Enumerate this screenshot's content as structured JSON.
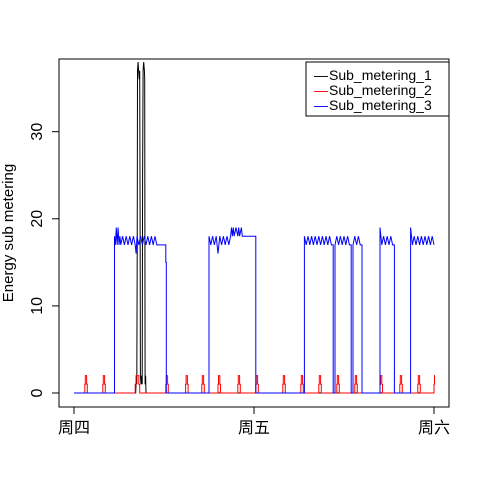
{
  "chart_data": {
    "type": "line",
    "title": "",
    "xlabel": "",
    "ylabel": "Energy sub metering",
    "x_domain": [
      0,
      2
    ],
    "x_ticks": [
      {
        "value": 0,
        "label": "周四"
      },
      {
        "value": 1,
        "label": "周五"
      },
      {
        "value": 2,
        "label": "周六"
      }
    ],
    "y_domain": [
      -1.5,
      39
    ],
    "y_ticks": [
      0,
      10,
      20,
      30
    ],
    "legend": {
      "position": "top-right",
      "line_symbol": "—"
    },
    "series": [
      {
        "name": "Sub_metering_1",
        "color": "#000000",
        "points": [
          [
            0,
            0
          ],
          [
            0.343,
            0
          ],
          [
            0.346,
            2
          ],
          [
            0.349,
            1
          ],
          [
            0.351,
            16
          ],
          [
            0.353,
            37
          ],
          [
            0.356,
            38
          ],
          [
            0.359,
            37
          ],
          [
            0.362,
            36
          ],
          [
            0.365,
            37
          ],
          [
            0.367,
            20
          ],
          [
            0.369,
            2
          ],
          [
            0.372,
            1
          ],
          [
            0.376,
            2
          ],
          [
            0.379,
            1
          ],
          [
            0.381,
            25
          ],
          [
            0.384,
            37
          ],
          [
            0.387,
            38
          ],
          [
            0.391,
            37
          ],
          [
            0.393,
            36
          ],
          [
            0.395,
            1
          ],
          [
            0.398,
            2
          ],
          [
            0.4,
            0
          ],
          [
            0.41,
            0
          ],
          [
            2,
            0
          ]
        ]
      },
      {
        "name": "Sub_metering_2",
        "color": "#ff0000",
        "points": [
          [
            0,
            0
          ],
          [
            0.06,
            0
          ],
          [
            0.06,
            1
          ],
          [
            0.063,
            1
          ],
          [
            0.063,
            2
          ],
          [
            0.07,
            2
          ],
          [
            0.07,
            1
          ],
          [
            0.074,
            1
          ],
          [
            0.074,
            0
          ],
          [
            0.16,
            0
          ],
          [
            0.16,
            1
          ],
          [
            0.163,
            1
          ],
          [
            0.163,
            2
          ],
          [
            0.17,
            2
          ],
          [
            0.17,
            1
          ],
          [
            0.174,
            1
          ],
          [
            0.174,
            0
          ],
          [
            0.34,
            0
          ],
          [
            0.34,
            1
          ],
          [
            0.345,
            1
          ],
          [
            0.345,
            2
          ],
          [
            0.36,
            2
          ],
          [
            0.36,
            1
          ],
          [
            0.365,
            1
          ],
          [
            0.365,
            0
          ],
          [
            0.51,
            0
          ],
          [
            0.51,
            1
          ],
          [
            0.513,
            1
          ],
          [
            0.513,
            2
          ],
          [
            0.52,
            2
          ],
          [
            0.52,
            1
          ],
          [
            0.524,
            1
          ],
          [
            0.524,
            0
          ],
          [
            0.62,
            0
          ],
          [
            0.62,
            1
          ],
          [
            0.623,
            1
          ],
          [
            0.623,
            2
          ],
          [
            0.63,
            2
          ],
          [
            0.63,
            1
          ],
          [
            0.634,
            1
          ],
          [
            0.634,
            0
          ],
          [
            0.71,
            0
          ],
          [
            0.71,
            1
          ],
          [
            0.713,
            1
          ],
          [
            0.713,
            2
          ],
          [
            0.72,
            2
          ],
          [
            0.72,
            1
          ],
          [
            0.724,
            1
          ],
          [
            0.724,
            0
          ],
          [
            0.8,
            0
          ],
          [
            0.8,
            1
          ],
          [
            0.803,
            1
          ],
          [
            0.803,
            2
          ],
          [
            0.81,
            2
          ],
          [
            0.81,
            1
          ],
          [
            0.814,
            1
          ],
          [
            0.814,
            0
          ],
          [
            0.91,
            0
          ],
          [
            0.91,
            1
          ],
          [
            0.913,
            1
          ],
          [
            0.913,
            2
          ],
          [
            0.92,
            2
          ],
          [
            0.92,
            1
          ],
          [
            0.924,
            1
          ],
          [
            0.924,
            0
          ],
          [
            1.01,
            0
          ],
          [
            1.01,
            1
          ],
          [
            1.013,
            1
          ],
          [
            1.013,
            2
          ],
          [
            1.02,
            2
          ],
          [
            1.02,
            1
          ],
          [
            1.024,
            1
          ],
          [
            1.024,
            0
          ],
          [
            1.16,
            0
          ],
          [
            1.16,
            1
          ],
          [
            1.163,
            1
          ],
          [
            1.163,
            2
          ],
          [
            1.17,
            2
          ],
          [
            1.17,
            1
          ],
          [
            1.174,
            1
          ],
          [
            1.174,
            0
          ],
          [
            1.26,
            0
          ],
          [
            1.26,
            1
          ],
          [
            1.263,
            1
          ],
          [
            1.263,
            2
          ],
          [
            1.27,
            2
          ],
          [
            1.27,
            1
          ],
          [
            1.274,
            1
          ],
          [
            1.274,
            0
          ],
          [
            1.36,
            0
          ],
          [
            1.36,
            1
          ],
          [
            1.363,
            1
          ],
          [
            1.363,
            2
          ],
          [
            1.37,
            2
          ],
          [
            1.37,
            1
          ],
          [
            1.374,
            1
          ],
          [
            1.374,
            0
          ],
          [
            1.46,
            0
          ],
          [
            1.46,
            1
          ],
          [
            1.463,
            1
          ],
          [
            1.463,
            2
          ],
          [
            1.47,
            2
          ],
          [
            1.47,
            1
          ],
          [
            1.474,
            1
          ],
          [
            1.474,
            0
          ],
          [
            1.56,
            0
          ],
          [
            1.56,
            1
          ],
          [
            1.563,
            1
          ],
          [
            1.563,
            2
          ],
          [
            1.57,
            2
          ],
          [
            1.57,
            1
          ],
          [
            1.574,
            1
          ],
          [
            1.574,
            0
          ],
          [
            1.7,
            0
          ],
          [
            1.7,
            1
          ],
          [
            1.703,
            1
          ],
          [
            1.703,
            2
          ],
          [
            1.71,
            2
          ],
          [
            1.71,
            1
          ],
          [
            1.714,
            1
          ],
          [
            1.714,
            0
          ],
          [
            1.81,
            0
          ],
          [
            1.81,
            1
          ],
          [
            1.813,
            1
          ],
          [
            1.813,
            2
          ],
          [
            1.82,
            2
          ],
          [
            1.82,
            1
          ],
          [
            1.824,
            1
          ],
          [
            1.824,
            0
          ],
          [
            1.91,
            0
          ],
          [
            1.91,
            1
          ],
          [
            1.913,
            1
          ],
          [
            1.913,
            2
          ],
          [
            1.92,
            2
          ],
          [
            1.92,
            1
          ],
          [
            1.924,
            1
          ],
          [
            1.924,
            0
          ],
          [
            2.0,
            0
          ],
          [
            2.0,
            1
          ],
          [
            2.003,
            1
          ],
          [
            2.003,
            2
          ],
          [
            2,
            2
          ]
        ]
      },
      {
        "name": "Sub_metering_3",
        "color": "#0000ff",
        "points": [
          [
            0,
            0
          ],
          [
            0.225,
            0
          ],
          [
            0.225,
            18
          ],
          [
            0.23,
            17
          ],
          [
            0.235,
            19
          ],
          [
            0.24,
            17
          ],
          [
            0.245,
            19
          ],
          [
            0.25,
            17
          ],
          [
            0.255,
            18
          ],
          [
            0.26,
            17
          ],
          [
            0.27,
            18
          ],
          [
            0.28,
            17
          ],
          [
            0.29,
            18
          ],
          [
            0.3,
            17
          ],
          [
            0.31,
            18
          ],
          [
            0.32,
            17
          ],
          [
            0.33,
            18
          ],
          [
            0.34,
            17
          ],
          [
            0.345,
            16
          ],
          [
            0.35,
            18
          ],
          [
            0.36,
            17
          ],
          [
            0.37,
            18
          ],
          [
            0.38,
            17
          ],
          [
            0.39,
            18
          ],
          [
            0.4,
            17
          ],
          [
            0.41,
            18
          ],
          [
            0.42,
            17
          ],
          [
            0.43,
            18
          ],
          [
            0.44,
            17
          ],
          [
            0.45,
            18
          ],
          [
            0.46,
            17
          ],
          [
            0.51,
            17
          ],
          [
            0.51,
            15
          ],
          [
            0.513,
            15
          ],
          [
            0.513,
            0
          ],
          [
            0.75,
            0
          ],
          [
            0.75,
            18
          ],
          [
            0.76,
            17
          ],
          [
            0.77,
            18
          ],
          [
            0.78,
            17
          ],
          [
            0.79,
            18
          ],
          [
            0.8,
            16
          ],
          [
            0.81,
            18
          ],
          [
            0.82,
            17
          ],
          [
            0.83,
            18
          ],
          [
            0.84,
            17
          ],
          [
            0.85,
            18
          ],
          [
            0.86,
            17
          ],
          [
            0.87,
            18
          ],
          [
            0.875,
            19
          ],
          [
            0.88,
            18
          ],
          [
            0.885,
            19
          ],
          [
            0.89,
            18
          ],
          [
            0.9,
            19
          ],
          [
            0.91,
            18
          ],
          [
            0.915,
            19
          ],
          [
            0.92,
            18
          ],
          [
            0.93,
            19
          ],
          [
            0.935,
            18
          ],
          [
            0.94,
            18
          ],
          [
            1.01,
            18
          ],
          [
            1.01,
            0
          ],
          [
            1.28,
            0
          ],
          [
            1.28,
            18
          ],
          [
            1.29,
            17
          ],
          [
            1.3,
            18
          ],
          [
            1.31,
            17
          ],
          [
            1.32,
            18
          ],
          [
            1.33,
            17
          ],
          [
            1.34,
            18
          ],
          [
            1.35,
            17
          ],
          [
            1.36,
            18
          ],
          [
            1.37,
            17
          ],
          [
            1.38,
            18
          ],
          [
            1.39,
            17
          ],
          [
            1.4,
            18
          ],
          [
            1.41,
            17
          ],
          [
            1.42,
            18
          ],
          [
            1.43,
            17
          ],
          [
            1.44,
            17
          ],
          [
            1.44,
            0
          ],
          [
            1.45,
            0
          ],
          [
            1.45,
            17
          ],
          [
            1.46,
            18
          ],
          [
            1.47,
            17
          ],
          [
            1.48,
            18
          ],
          [
            1.49,
            17
          ],
          [
            1.5,
            18
          ],
          [
            1.51,
            17
          ],
          [
            1.52,
            18
          ],
          [
            1.53,
            17
          ],
          [
            1.54,
            17
          ],
          [
            1.54,
            0
          ],
          [
            1.55,
            0
          ],
          [
            1.55,
            17
          ],
          [
            1.56,
            18
          ],
          [
            1.57,
            17
          ],
          [
            1.58,
            18
          ],
          [
            1.59,
            17
          ],
          [
            1.6,
            17
          ],
          [
            1.6,
            0
          ],
          [
            1.7,
            0
          ],
          [
            1.7,
            19
          ],
          [
            1.71,
            17
          ],
          [
            1.72,
            18
          ],
          [
            1.73,
            17
          ],
          [
            1.74,
            18
          ],
          [
            1.75,
            17
          ],
          [
            1.76,
            18
          ],
          [
            1.77,
            17
          ],
          [
            1.78,
            17
          ],
          [
            1.78,
            0
          ],
          [
            1.87,
            0
          ],
          [
            1.87,
            19
          ],
          [
            1.88,
            17
          ],
          [
            1.89,
            18
          ],
          [
            1.9,
            17
          ],
          [
            1.91,
            18
          ],
          [
            1.92,
            17
          ],
          [
            1.93,
            18
          ],
          [
            1.94,
            17
          ],
          [
            1.95,
            18
          ],
          [
            1.96,
            17
          ],
          [
            1.97,
            18
          ],
          [
            1.98,
            17
          ],
          [
            1.99,
            18
          ],
          [
            2.0,
            17
          ]
        ]
      }
    ]
  }
}
